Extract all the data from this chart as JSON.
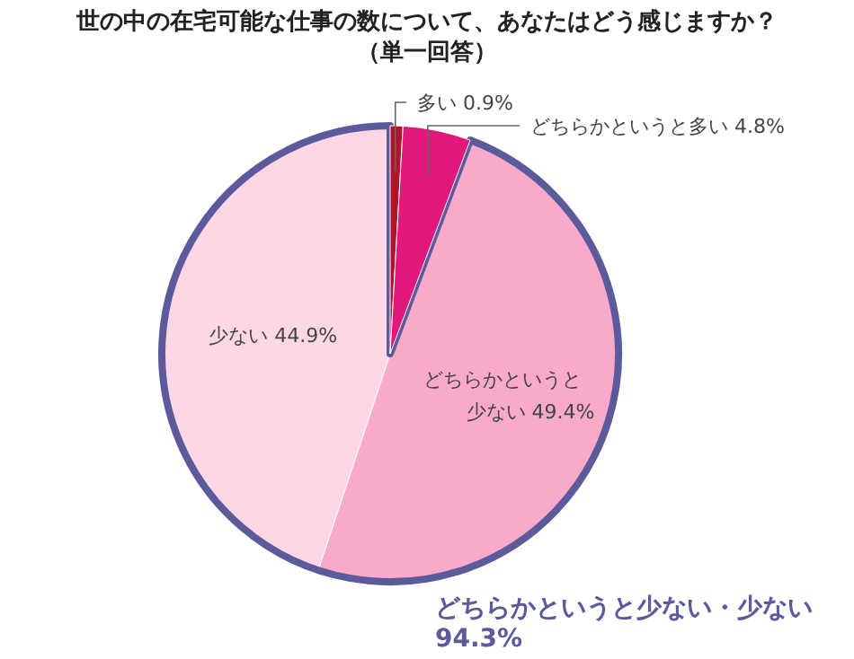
{
  "chart_data": {
    "type": "pie",
    "title": "世の中の在宅可能な仕事の数について、あなたはどう感じますか？",
    "subtitle": "（単一回答）",
    "categories": [
      "多い",
      "どちらかというと多い",
      "どちらかというと少ない",
      "少ない"
    ],
    "values": [
      0.9,
      4.8,
      49.4,
      44.9
    ],
    "colors": [
      "#b0152a",
      "#e2197a",
      "#f9aacb",
      "#fdd7e6"
    ],
    "value_labels": [
      "0.9%",
      "4.8%",
      "49.4%",
      "44.9%"
    ],
    "annotations": [
      "どちらかというと少ない・少ない 94.3%"
    ]
  }
}
